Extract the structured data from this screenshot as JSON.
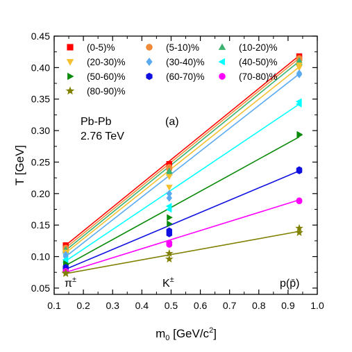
{
  "chart_data": {
    "type": "scatter",
    "title": "",
    "xlabel": "m",
    "xlabel_sub": "0",
    "xlabel_unit": " [GeV/c",
    "xlabel_sup": "2",
    "xlabel_end": "]",
    "ylabel": "T [GeV]",
    "xlim": [
      0.1,
      1.0
    ],
    "ylim": [
      0.04,
      0.45
    ],
    "grid": false,
    "legend_position": "top",
    "xticks": [
      0.1,
      0.2,
      0.3,
      0.4,
      0.5,
      0.6,
      0.7,
      0.8,
      0.9,
      1.0
    ],
    "xtick_labels": [
      "0.1",
      "0.2",
      "0.3",
      "0.4",
      "0.5",
      "0.6",
      "0.7",
      "0.8",
      "0.9",
      "1.0"
    ],
    "yticks": [
      0.05,
      0.1,
      0.15,
      0.2,
      0.25,
      0.3,
      0.35,
      0.4,
      0.45
    ],
    "ytick_labels": [
      "0.05",
      "0.10",
      "0.15",
      "0.20",
      "0.25",
      "0.30",
      "0.35",
      "0.40",
      "0.45"
    ],
    "annotations": {
      "system": "Pb-Pb",
      "energy": "2.76 TeV",
      "panel": "(a)",
      "pion": "π",
      "pion_sup": "±",
      "kaon": "K",
      "kaon_sup": "±",
      "proton": "p(p̄)"
    },
    "x_particles": [
      0.1396,
      0.4937,
      0.9383
    ],
    "series": [
      {
        "name": "(0-5)%",
        "color": "#ff0000",
        "marker": "square",
        "values": [
          [
            0.118,
            0.116
          ],
          [
            0.247,
            0.244
          ],
          [
            0.418,
            0.415
          ]
        ],
        "fit": [
          0.118,
          0.419
        ]
      },
      {
        "name": "(5-10)%",
        "color": "#ef8a3a",
        "marker": "circle",
        "values": [
          [
            0.114,
            0.112
          ],
          [
            0.242,
            0.239
          ],
          [
            0.415,
            0.412
          ]
        ],
        "fit": [
          0.114,
          0.415
        ]
      },
      {
        "name": "(10-20)%",
        "color": "#3cb371",
        "marker": "triangle-up",
        "values": [
          [
            0.111,
            0.109
          ],
          [
            0.236,
            0.233
          ],
          [
            0.411,
            0.408
          ]
        ],
        "fit": [
          0.11,
          0.41
        ]
      },
      {
        "name": "(20-30)%",
        "color": "#f5c030",
        "marker": "triangle-down",
        "values": [
          [
            0.107,
            0.105
          ],
          [
            0.227,
            0.21
          ],
          [
            0.404,
            0.4
          ]
        ],
        "fit": [
          0.106,
          0.401
        ]
      },
      {
        "name": "(30-40)%",
        "color": "#5aaaf0",
        "marker": "diamond",
        "values": [
          [
            0.103,
            0.1
          ],
          [
            0.2,
            0.193
          ],
          [
            0.391,
            0.389
          ]
        ],
        "fit": [
          0.1,
          0.39
        ]
      },
      {
        "name": "(40-50)%",
        "color": "#00ffff",
        "marker": "triangle-left",
        "values": [
          [
            0.095,
            0.091
          ],
          [
            0.18,
            0.175
          ],
          [
            0.346,
            0.342
          ]
        ],
        "fit": [
          0.093,
          0.342
        ]
      },
      {
        "name": "(50-60)%",
        "color": "#0a8a0a",
        "marker": "triangle-right",
        "values": [
          [
            0.089,
            0.087
          ],
          [
            0.162,
            0.152
          ],
          [
            0.294,
            0.293
          ]
        ],
        "fit": [
          0.086,
          0.29
        ]
      },
      {
        "name": "(60-70)%",
        "color": "#1010e0",
        "marker": "hexagon",
        "values": [
          [
            0.083,
            0.081
          ],
          [
            0.141,
            0.136
          ],
          [
            0.238,
            0.236
          ]
        ],
        "fit": [
          0.08,
          0.236
        ]
      },
      {
        "name": "(70-80)%",
        "color": "#ff00ff",
        "marker": "circle",
        "values": [
          [
            0.077,
            0.076
          ],
          [
            0.122,
            0.119
          ],
          [
            0.189,
            0.188
          ]
        ],
        "fit": [
          0.075,
          0.19
        ]
      },
      {
        "name": "(80-90)%",
        "color": "#808000",
        "marker": "star",
        "values": [
          [
            0.074,
            0.073
          ],
          [
            0.105,
            0.096
          ],
          [
            0.145,
            0.138
          ]
        ],
        "fit": [
          0.073,
          0.14
        ]
      }
    ]
  }
}
